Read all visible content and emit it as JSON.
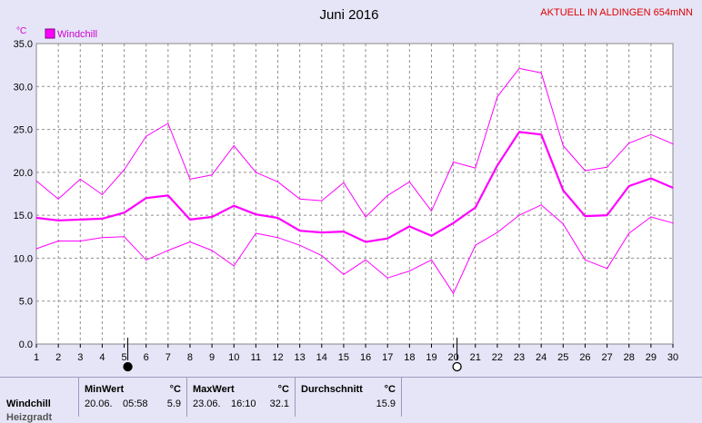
{
  "title": "Juni 2016",
  "station": "AKTUELL IN ALDINGEN 654mNN",
  "unit": "°C",
  "chart_data": {
    "type": "line",
    "title": "Juni 2016",
    "ylabel": "°C",
    "x": [
      1,
      2,
      3,
      4,
      5,
      6,
      7,
      8,
      9,
      10,
      11,
      12,
      13,
      14,
      15,
      16,
      17,
      18,
      19,
      20,
      21,
      22,
      23,
      24,
      25,
      26,
      27,
      28,
      29,
      30
    ],
    "ylim": [
      0,
      35
    ],
    "yticks": [
      "0.0",
      "5.0",
      "10.0",
      "15.0",
      "20.0",
      "25.0",
      "30.0",
      "35.0"
    ],
    "grid": true,
    "legend": [
      "Windchill"
    ],
    "legend_position": "top-left",
    "color": "#ff00ff",
    "series": [
      {
        "role": "max",
        "values": [
          19.0,
          16.9,
          19.2,
          17.4,
          20.3,
          24.2,
          25.7,
          19.2,
          19.7,
          23.1,
          20.0,
          18.9,
          16.9,
          16.7,
          18.8,
          14.8,
          17.3,
          18.9,
          15.5,
          21.2,
          20.5,
          28.8,
          32.1,
          31.6,
          23.1,
          20.2,
          20.6,
          23.4,
          24.4,
          23.3
        ]
      },
      {
        "role": "avg",
        "values": [
          14.7,
          14.4,
          14.5,
          14.6,
          15.3,
          17.0,
          17.3,
          14.5,
          14.8,
          16.1,
          15.1,
          14.7,
          13.2,
          13.0,
          13.1,
          11.9,
          12.3,
          13.7,
          12.6,
          14.1,
          15.9,
          20.8,
          24.7,
          24.4,
          17.9,
          14.9,
          15.0,
          18.4,
          19.3,
          18.2
        ]
      },
      {
        "role": "min",
        "values": [
          11.1,
          12.0,
          12.0,
          12.4,
          12.5,
          9.8,
          10.9,
          11.9,
          10.9,
          9.1,
          12.9,
          12.4,
          11.5,
          10.3,
          8.1,
          9.8,
          7.7,
          8.5,
          9.8,
          5.9,
          11.5,
          13.0,
          15.0,
          16.2,
          14.0,
          9.8,
          8.8,
          12.9,
          14.8,
          14.1
        ]
      }
    ]
  },
  "markers": [
    {
      "day": 5,
      "symbol": "new-moon"
    },
    {
      "day": 20,
      "symbol": "full-moon"
    }
  ],
  "stats": {
    "row_label": "Windchill",
    "row_label2": "Heizgradt",
    "min": {
      "head": "MinWert",
      "unit": "°C",
      "date": "20.06.",
      "time": "05:58",
      "value": "5.9"
    },
    "max": {
      "head": "MaxWert",
      "unit": "°C",
      "date": "23.06.",
      "time": "16:10",
      "value": "32.1"
    },
    "avg": {
      "head": "Durchschnitt",
      "unit": "°C",
      "value": "15.9"
    }
  }
}
